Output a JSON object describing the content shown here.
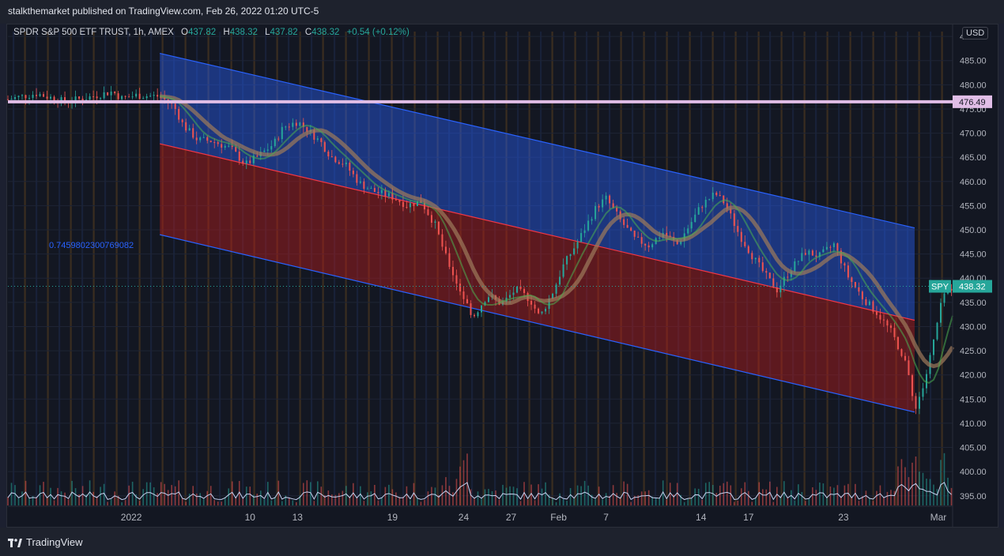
{
  "header": {
    "publisher_line": "stalkthemarket published on TradingView.com, Feb 26, 2022 01:20 UTC-5"
  },
  "legend": {
    "symbol_line": "SPDR S&P 500 ETF TRUST, 1h, AMEX",
    "o_label": "O",
    "o_value": "437.82",
    "h_label": "H",
    "h_value": "438.32",
    "l_label": "L",
    "l_value": "437.82",
    "c_label": "C",
    "c_value": "438.32",
    "change": "+0.54 (+0.12%)"
  },
  "currency_badge": "USD",
  "footer": {
    "brand": "TradingView"
  },
  "colors": {
    "up": "#26a69a",
    "down": "#ef5350",
    "channel_upper": "#2962ff",
    "channel_lower": "#f23645",
    "level_line": "#e1bee7",
    "background": "#131722"
  },
  "chart_data": {
    "type": "line",
    "ylim": [
      393,
      491
    ],
    "y_ticks": [
      "490.00",
      "485.00",
      "480.00",
      "475.00",
      "470.00",
      "465.00",
      "460.00",
      "455.00",
      "450.00",
      "445.00",
      "440.00",
      "435.00",
      "430.00",
      "425.00",
      "420.00",
      "415.00",
      "410.00",
      "405.00",
      "400.00",
      "395.00"
    ],
    "x_ticks": [
      "2022",
      "10",
      "13",
      "19",
      "24",
      "27",
      "Feb",
      "7",
      "14",
      "17",
      "23",
      "Mar"
    ],
    "x_tick_pos": [
      -0.6,
      1.9,
      2.9,
      4.9,
      6.4,
      7.4,
      8.4,
      9.4,
      11.4,
      12.4,
      14.4,
      16.4
    ],
    "x_range": [
      -3.2,
      16.7
    ],
    "series": [
      {
        "values": [
          [
            -3.2,
            477.0
          ],
          [
            -2.6,
            478.2
          ],
          [
            -2.0,
            476.5
          ],
          [
            -1.5,
            477.4
          ],
          [
            -1.0,
            478.6
          ],
          [
            -0.8,
            477.2
          ],
          [
            -0.5,
            477.8
          ],
          [
            0.0,
            477.6
          ],
          [
            0.3,
            475.5
          ],
          [
            0.5,
            471.5
          ],
          [
            0.8,
            468.6
          ],
          [
            1.1,
            468.4
          ],
          [
            1.5,
            466.8
          ],
          [
            1.8,
            463.5
          ],
          [
            2.1,
            465.4
          ],
          [
            2.4,
            467.8
          ],
          [
            2.6,
            471.2
          ],
          [
            2.9,
            472.4
          ],
          [
            3.1,
            470.8
          ],
          [
            3.4,
            468.0
          ],
          [
            3.6,
            465.2
          ],
          [
            3.9,
            463.6
          ],
          [
            4.2,
            459.7
          ],
          [
            4.5,
            458.0
          ],
          [
            4.9,
            456.8
          ],
          [
            5.2,
            455.1
          ],
          [
            5.5,
            455.9
          ],
          [
            5.8,
            451.0
          ],
          [
            6.0,
            445.0
          ],
          [
            6.3,
            438.0
          ],
          [
            6.6,
            432.0
          ],
          [
            6.9,
            436.5
          ],
          [
            7.2,
            434.6
          ],
          [
            7.5,
            437.7
          ],
          [
            7.8,
            435.6
          ],
          [
            8.0,
            431.9
          ],
          [
            8.3,
            437.6
          ],
          [
            8.5,
            442.6
          ],
          [
            8.8,
            447.5
          ],
          [
            9.2,
            454.8
          ],
          [
            9.4,
            456.5
          ],
          [
            9.7,
            452.0
          ],
          [
            10.0,
            448.1
          ],
          [
            10.3,
            446.8
          ],
          [
            10.6,
            449.4
          ],
          [
            10.9,
            447.0
          ],
          [
            11.1,
            450.0
          ],
          [
            11.4,
            455.0
          ],
          [
            11.7,
            457.5
          ],
          [
            11.9,
            455.5
          ],
          [
            12.2,
            449.1
          ],
          [
            12.5,
            444.3
          ],
          [
            12.8,
            440.0
          ],
          [
            13.0,
            437.6
          ],
          [
            13.3,
            442.0
          ],
          [
            13.6,
            445.4
          ],
          [
            13.9,
            444.6
          ],
          [
            14.2,
            447.0
          ],
          [
            14.5,
            440.3
          ],
          [
            14.8,
            436.0
          ],
          [
            15.1,
            432.9
          ],
          [
            15.4,
            429.0
          ],
          [
            15.7,
            423.0
          ],
          [
            15.9,
            413.0
          ],
          [
            16.1,
            418.0
          ],
          [
            16.3,
            427.0
          ],
          [
            16.5,
            436.5
          ],
          [
            16.7,
            438.3
          ]
        ]
      }
    ],
    "channel": {
      "upper": {
        "start": [
          0,
          486.5
        ],
        "end": [
          15.9,
          450.4
        ]
      },
      "mid": {
        "start": [
          0,
          467.8
        ],
        "end": [
          15.9,
          431.3
        ]
      },
      "lower": {
        "start": [
          0,
          449.0
        ],
        "end": [
          15.9,
          412.3
        ]
      },
      "label": "0.745980230076908​2"
    },
    "level": {
      "value": 476.49,
      "label": "476.49"
    },
    "last_price": {
      "symbol": "SPY",
      "value": "438.32"
    }
  }
}
